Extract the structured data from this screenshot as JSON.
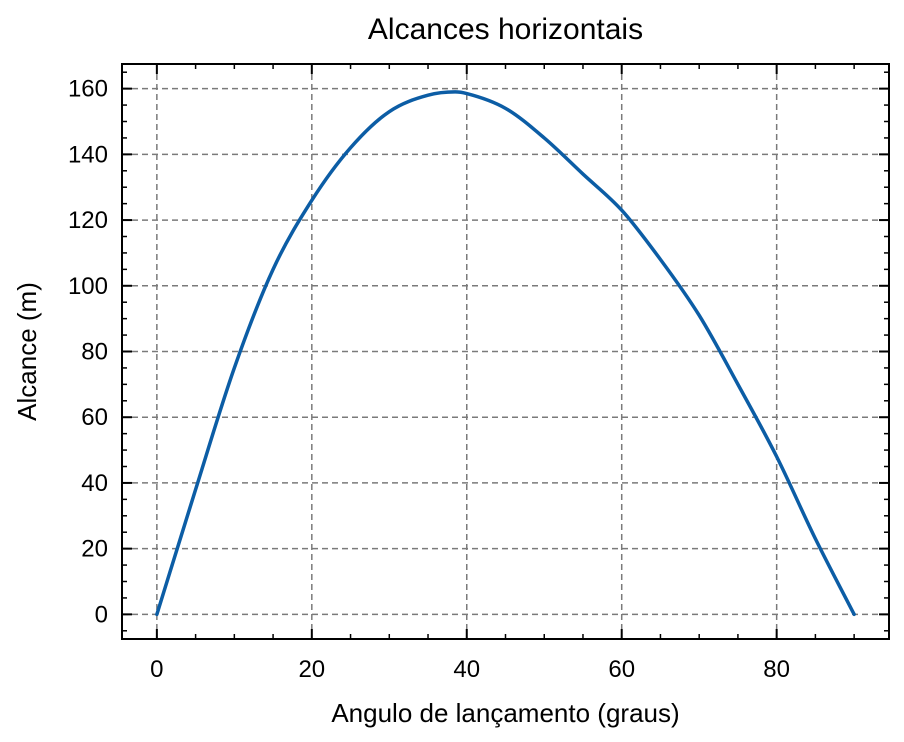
{
  "chart_data": {
    "type": "line",
    "title": "Alcances horizontais",
    "xlabel": "Angulo de lançamento (graus)",
    "ylabel": "Alcance (m)",
    "xlim": [
      -4.5,
      94.5
    ],
    "ylim": [
      -7.5,
      167.5
    ],
    "x_ticks": [
      0,
      20,
      40,
      60,
      80
    ],
    "y_ticks": [
      0,
      20,
      40,
      60,
      80,
      100,
      120,
      140,
      160
    ],
    "x_tick_labels": [
      "0",
      "20",
      "40",
      "60",
      "80"
    ],
    "y_tick_labels": [
      "0",
      "20",
      "40",
      "60",
      "80",
      "100",
      "120",
      "140",
      "160"
    ],
    "x_minor_step": 5,
    "y_minor_step": 5,
    "grid": true,
    "grid_style": "dashed",
    "legend": "none",
    "series": [
      {
        "color": "#0C5DA5",
        "x": [
          0,
          5,
          10,
          15,
          20,
          25,
          30,
          35,
          38.5,
          40,
          45,
          50,
          55,
          60,
          65,
          70,
          75,
          80,
          85,
          90
        ],
        "y": [
          0,
          38,
          75,
          105,
          126,
          142,
          153,
          158,
          159,
          158.5,
          154,
          145,
          134,
          123,
          108,
          91,
          70,
          48,
          23,
          0
        ]
      }
    ]
  }
}
